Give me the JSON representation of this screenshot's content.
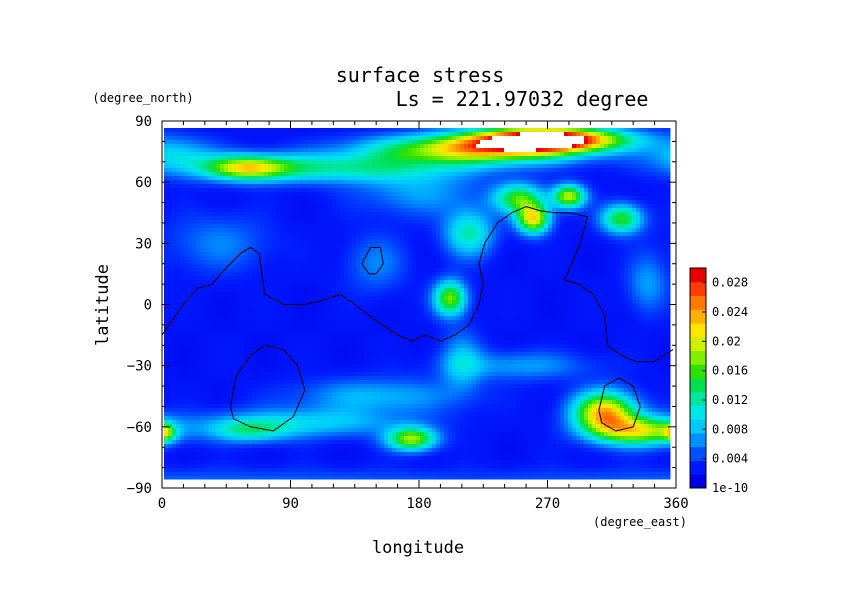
{
  "chart_data": {
    "type": "heatmap",
    "title": "surface stress",
    "subtitle": "Ls = 221.97032 degree",
    "xlabel": "longitude",
    "ylabel": "latitude",
    "x_units": "(degree_east)",
    "y_units": "(degree_north)",
    "xlim": [
      0,
      360
    ],
    "ylim": [
      -90,
      90
    ],
    "x_ticks": [
      "0",
      "90",
      "180",
      "270",
      "360"
    ],
    "y_ticks": [
      "90",
      "60",
      "30",
      "0",
      "−30",
      "−60",
      "−90"
    ],
    "x_tick_values": [
      0,
      90,
      180,
      270,
      360
    ],
    "y_tick_values": [
      90,
      60,
      30,
      0,
      -30,
      -60,
      -90
    ],
    "colorbar": {
      "min": 0,
      "max": 0.03,
      "tick_labels": [
        "0.028",
        "0.024",
        "0.02",
        "0.016",
        "0.012",
        "0.008",
        "0.004",
        "1e-10"
      ],
      "tick_values": [
        0.028,
        0.024,
        0.02,
        0.016,
        0.012,
        0.008,
        0.004,
        0
      ],
      "colors": [
        "#0000e6",
        "#0018ff",
        "#0050ff",
        "#0090ff",
        "#00c8ff",
        "#00e6e6",
        "#00e6a0",
        "#00e050",
        "#30e000",
        "#80f000",
        "#d0f000",
        "#ffe600",
        "#ffb000",
        "#ff7800",
        "#ff3c00",
        "#e60000"
      ]
    },
    "features": [
      {
        "lon": 270,
        "lat": 81,
        "sx": 35,
        "sy": 4,
        "value": 0.034
      },
      {
        "lon": 220,
        "lat": 76,
        "sx": 50,
        "sy": 5,
        "value": 0.02
      },
      {
        "lon": 120,
        "lat": 67,
        "sx": 60,
        "sy": 5,
        "value": 0.01
      },
      {
        "lon": 60,
        "lat": 67,
        "sx": 20,
        "sy": 4,
        "value": 0.016
      },
      {
        "lon": 10,
        "lat": 73,
        "sx": 20,
        "sy": 6,
        "value": 0.007
      },
      {
        "lon": 250,
        "lat": 52,
        "sx": 12,
        "sy": 5,
        "value": 0.014
      },
      {
        "lon": 260,
        "lat": 42,
        "sx": 8,
        "sy": 5,
        "value": 0.02
      },
      {
        "lon": 285,
        "lat": 53,
        "sx": 8,
        "sy": 4,
        "value": 0.018
      },
      {
        "lon": 322,
        "lat": 42,
        "sx": 10,
        "sy": 5,
        "value": 0.014
      },
      {
        "lon": 215,
        "lat": 35,
        "sx": 12,
        "sy": 8,
        "value": 0.01
      },
      {
        "lon": 202,
        "lat": 3,
        "sx": 8,
        "sy": 6,
        "value": 0.016
      },
      {
        "lon": 310,
        "lat": -53,
        "sx": 15,
        "sy": 7,
        "value": 0.022
      },
      {
        "lon": 335,
        "lat": -62,
        "sx": 22,
        "sy": 5,
        "value": 0.018
      },
      {
        "lon": 175,
        "lat": -66,
        "sx": 12,
        "sy": 4,
        "value": 0.017
      },
      {
        "lon": 0,
        "lat": -63,
        "sx": 6,
        "sy": 3,
        "value": 0.014
      },
      {
        "lon": 100,
        "lat": -58,
        "sx": 50,
        "sy": 5,
        "value": 0.007
      },
      {
        "lon": 60,
        "lat": -62,
        "sx": 20,
        "sy": 4,
        "value": 0.008
      },
      {
        "lon": 150,
        "lat": -45,
        "sx": 40,
        "sy": 6,
        "value": 0.006
      },
      {
        "lon": 180,
        "lat": 55,
        "sx": 30,
        "sy": 8,
        "value": 0.005
      },
      {
        "lon": 340,
        "lat": 10,
        "sx": 10,
        "sy": 10,
        "value": 0.005
      },
      {
        "lon": 40,
        "lat": 30,
        "sx": 25,
        "sy": 10,
        "value": 0.004
      },
      {
        "lon": 150,
        "lat": 20,
        "sx": 15,
        "sy": 10,
        "value": 0.004
      },
      {
        "lon": 250,
        "lat": -30,
        "sx": 35,
        "sy": 5,
        "value": 0.005
      },
      {
        "lon": 210,
        "lat": -28,
        "sx": 10,
        "sy": 10,
        "value": 0.006
      },
      {
        "lon": 40,
        "lat": -90,
        "sx": 200,
        "sy": 6,
        "value": 0.004
      }
    ],
    "contours": [
      [
        [
          0,
          -15
        ],
        [
          15,
          0
        ],
        [
          25,
          8
        ],
        [
          35,
          10
        ],
        [
          45,
          18
        ],
        [
          55,
          25
        ],
        [
          62,
          28
        ],
        [
          68,
          25
        ],
        [
          70,
          15
        ],
        [
          72,
          5
        ],
        [
          85,
          0
        ],
        [
          100,
          0
        ],
        [
          112,
          2
        ],
        [
          125,
          5
        ],
        [
          135,
          0
        ],
        [
          150,
          -8
        ],
        [
          165,
          -15
        ],
        [
          175,
          -18
        ],
        [
          185,
          -15
        ],
        [
          195,
          -18
        ],
        [
          205,
          -15
        ],
        [
          215,
          -10
        ],
        [
          222,
          0
        ],
        [
          225,
          10
        ],
        [
          222,
          20
        ],
        [
          226,
          30
        ],
        [
          235,
          40
        ],
        [
          245,
          45
        ],
        [
          255,
          48
        ],
        [
          265,
          46
        ],
        [
          275,
          45
        ],
        [
          285,
          45
        ],
        [
          298,
          43
        ],
        [
          293,
          30
        ],
        [
          287,
          20
        ],
        [
          282,
          12
        ],
        [
          292,
          10
        ],
        [
          302,
          5
        ],
        [
          310,
          -5
        ],
        [
          312,
          -20
        ],
        [
          322,
          -25
        ],
        [
          332,
          -28
        ],
        [
          345,
          -28
        ],
        [
          358,
          -22
        ]
      ],
      [
        [
          140,
          20
        ],
        [
          146,
          28
        ],
        [
          153,
          28
        ],
        [
          155,
          20
        ],
        [
          150,
          15
        ],
        [
          145,
          15
        ],
        [
          140,
          20
        ]
      ],
      [
        [
          48,
          -50
        ],
        [
          52,
          -35
        ],
        [
          62,
          -25
        ],
        [
          72,
          -20
        ],
        [
          85,
          -22
        ],
        [
          95,
          -30
        ],
        [
          100,
          -42
        ],
        [
          92,
          -55
        ],
        [
          78,
          -62
        ],
        [
          62,
          -60
        ],
        [
          50,
          -56
        ],
        [
          48,
          -50
        ]
      ],
      [
        [
          306,
          -52
        ],
        [
          310,
          -40
        ],
        [
          320,
          -36
        ],
        [
          330,
          -40
        ],
        [
          335,
          -50
        ],
        [
          330,
          -60
        ],
        [
          318,
          -62
        ],
        [
          308,
          -58
        ],
        [
          306,
          -52
        ]
      ]
    ]
  }
}
